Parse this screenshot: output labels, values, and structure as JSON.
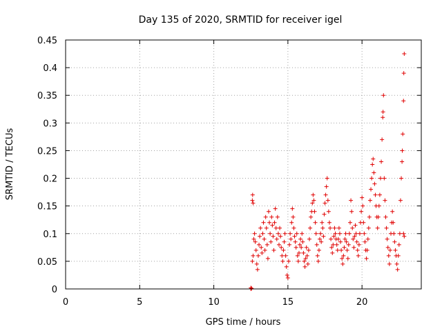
{
  "colors": {
    "marker": "#e00000",
    "grid": "#a0a0a0",
    "axis": "#000000",
    "background": "#ffffff"
  },
  "chart_data": {
    "type": "scatter",
    "marker": "plus",
    "title": "Day 135 of 2020, SRMTID for receiver igel",
    "xlabel": "GPS time / hours",
    "ylabel": "SRMTID / TECUs",
    "xlim": [
      0,
      24
    ],
    "ylim": [
      0,
      0.45
    ],
    "xticks": [
      0,
      5,
      10,
      15,
      20
    ],
    "xtick_labels": [
      "0",
      "5",
      "10",
      "15",
      "20"
    ],
    "yticks": [
      0,
      0.05,
      0.1,
      0.15,
      0.2,
      0.25,
      0.3,
      0.35,
      0.4,
      0.45
    ],
    "ytick_labels": [
      "0",
      "0.05",
      "0.1",
      "0.15",
      "0.2",
      "0.25",
      "0.3",
      "0.35",
      "0.4",
      "0.45"
    ],
    "grid": true,
    "series": [
      {
        "name": "SRMTID",
        "points": [
          [
            12.5,
            0.0
          ],
          [
            12.5,
            0.002
          ],
          [
            12.55,
            0.001
          ],
          [
            12.6,
            0.16
          ],
          [
            12.62,
            0.17
          ],
          [
            12.65,
            0.155
          ],
          [
            12.6,
            0.05
          ],
          [
            12.65,
            0.06
          ],
          [
            12.7,
            0.09
          ],
          [
            12.75,
            0.1
          ],
          [
            12.8,
            0.085
          ],
          [
            12.85,
            0.07
          ],
          [
            12.9,
            0.045
          ],
          [
            12.95,
            0.035
          ],
          [
            13.0,
            0.06
          ],
          [
            13.05,
            0.08
          ],
          [
            13.1,
            0.095
          ],
          [
            13.15,
            0.11
          ],
          [
            13.2,
            0.075
          ],
          [
            13.25,
            0.065
          ],
          [
            13.3,
            0.1
          ],
          [
            13.35,
            0.12
          ],
          [
            13.4,
            0.09
          ],
          [
            13.45,
            0.07
          ],
          [
            13.5,
            0.13
          ],
          [
            13.55,
            0.11
          ],
          [
            13.6,
            0.08
          ],
          [
            13.65,
            0.055
          ],
          [
            13.7,
            0.14
          ],
          [
            13.75,
            0.12
          ],
          [
            13.8,
            0.1
          ],
          [
            13.85,
            0.085
          ],
          [
            13.9,
            0.13
          ],
          [
            13.95,
            0.115
          ],
          [
            14.0,
            0.095
          ],
          [
            14.05,
            0.07
          ],
          [
            14.1,
            0.12
          ],
          [
            14.15,
            0.145
          ],
          [
            14.2,
            0.11
          ],
          [
            14.25,
            0.09
          ],
          [
            14.3,
            0.13
          ],
          [
            14.35,
            0.1
          ],
          [
            14.4,
            0.08
          ],
          [
            14.45,
            0.11
          ],
          [
            14.5,
            0.095
          ],
          [
            14.55,
            0.075
          ],
          [
            14.6,
            0.06
          ],
          [
            14.65,
            0.05
          ],
          [
            14.7,
            0.07
          ],
          [
            14.75,
            0.085
          ],
          [
            14.8,
            0.1
          ],
          [
            14.85,
            0.06
          ],
          [
            14.9,
            0.04
          ],
          [
            14.95,
            0.025
          ],
          [
            15.0,
            0.02
          ],
          [
            15.05,
            0.05
          ],
          [
            15.1,
            0.08
          ],
          [
            15.15,
            0.1
          ],
          [
            15.2,
            0.09
          ],
          [
            15.25,
            0.12
          ],
          [
            15.3,
            0.145
          ],
          [
            15.35,
            0.13
          ],
          [
            15.4,
            0.11
          ],
          [
            15.45,
            0.095
          ],
          [
            15.5,
            0.085
          ],
          [
            15.55,
            0.075
          ],
          [
            15.6,
            0.1
          ],
          [
            15.65,
            0.06
          ],
          [
            15.7,
            0.05
          ],
          [
            15.75,
            0.065
          ],
          [
            15.8,
            0.08
          ],
          [
            15.85,
            0.09
          ],
          [
            15.9,
            0.075
          ],
          [
            15.95,
            0.1
          ],
          [
            16.0,
            0.085
          ],
          [
            16.05,
            0.065
          ],
          [
            16.1,
            0.05
          ],
          [
            16.15,
            0.04
          ],
          [
            16.2,
            0.055
          ],
          [
            16.25,
            0.075
          ],
          [
            16.3,
            0.06
          ],
          [
            16.35,
            0.045
          ],
          [
            16.4,
            0.07
          ],
          [
            16.45,
            0.09
          ],
          [
            16.5,
            0.11
          ],
          [
            16.55,
            0.13
          ],
          [
            16.6,
            0.14
          ],
          [
            16.65,
            0.155
          ],
          [
            16.7,
            0.17
          ],
          [
            16.75,
            0.16
          ],
          [
            16.8,
            0.14
          ],
          [
            16.85,
            0.12
          ],
          [
            16.9,
            0.1
          ],
          [
            16.95,
            0.08
          ],
          [
            17.0,
            0.06
          ],
          [
            17.05,
            0.05
          ],
          [
            17.1,
            0.07
          ],
          [
            17.15,
            0.09
          ],
          [
            17.2,
            0.1
          ],
          [
            17.25,
            0.085
          ],
          [
            17.3,
            0.12
          ],
          [
            17.35,
            0.11
          ],
          [
            17.4,
            0.095
          ],
          [
            17.45,
            0.135
          ],
          [
            17.5,
            0.155
          ],
          [
            17.55,
            0.17
          ],
          [
            17.6,
            0.185
          ],
          [
            17.65,
            0.2
          ],
          [
            17.7,
            0.16
          ],
          [
            17.75,
            0.14
          ],
          [
            17.8,
            0.12
          ],
          [
            17.85,
            0.11
          ],
          [
            17.9,
            0.09
          ],
          [
            17.95,
            0.075
          ],
          [
            18.0,
            0.065
          ],
          [
            18.05,
            0.08
          ],
          [
            18.1,
            0.095
          ],
          [
            18.15,
            0.11
          ],
          [
            18.2,
            0.1
          ],
          [
            18.25,
            0.09
          ],
          [
            18.3,
            0.08
          ],
          [
            18.35,
            0.07
          ],
          [
            18.4,
            0.09
          ],
          [
            18.45,
            0.11
          ],
          [
            18.5,
            0.1
          ],
          [
            18.55,
            0.085
          ],
          [
            18.6,
            0.07
          ],
          [
            18.65,
            0.055
          ],
          [
            18.7,
            0.045
          ],
          [
            18.75,
            0.06
          ],
          [
            18.8,
            0.075
          ],
          [
            18.85,
            0.09
          ],
          [
            18.9,
            0.1
          ],
          [
            18.95,
            0.085
          ],
          [
            19.0,
            0.07
          ],
          [
            19.05,
            0.055
          ],
          [
            19.1,
            0.08
          ],
          [
            19.15,
            0.1
          ],
          [
            19.2,
            0.12
          ],
          [
            19.25,
            0.16
          ],
          [
            19.3,
            0.14
          ],
          [
            19.35,
            0.11
          ],
          [
            19.4,
            0.09
          ],
          [
            19.45,
            0.075
          ],
          [
            19.5,
            0.095
          ],
          [
            19.55,
            0.115
          ],
          [
            19.6,
            0.1
          ],
          [
            19.65,
            0.085
          ],
          [
            19.7,
            0.07
          ],
          [
            19.75,
            0.06
          ],
          [
            19.8,
            0.08
          ],
          [
            19.85,
            0.1
          ],
          [
            19.9,
            0.12
          ],
          [
            19.95,
            0.14
          ],
          [
            20.0,
            0.165
          ],
          [
            20.05,
            0.15
          ],
          [
            20.1,
            0.12
          ],
          [
            20.15,
            0.1
          ],
          [
            20.2,
            0.085
          ],
          [
            20.25,
            0.07
          ],
          [
            20.3,
            0.055
          ],
          [
            20.35,
            0.07
          ],
          [
            20.4,
            0.09
          ],
          [
            20.45,
            0.11
          ],
          [
            20.5,
            0.13
          ],
          [
            20.55,
            0.16
          ],
          [
            20.6,
            0.18
          ],
          [
            20.65,
            0.2
          ],
          [
            20.7,
            0.225
          ],
          [
            20.75,
            0.235
          ],
          [
            20.8,
            0.21
          ],
          [
            20.85,
            0.19
          ],
          [
            20.9,
            0.17
          ],
          [
            20.95,
            0.15
          ],
          [
            21.0,
            0.13
          ],
          [
            21.05,
            0.11
          ],
          [
            21.1,
            0.13
          ],
          [
            21.15,
            0.15
          ],
          [
            21.2,
            0.17
          ],
          [
            21.25,
            0.2
          ],
          [
            21.3,
            0.23
          ],
          [
            21.35,
            0.27
          ],
          [
            21.4,
            0.31
          ],
          [
            21.42,
            0.32
          ],
          [
            21.45,
            0.35
          ],
          [
            21.5,
            0.2
          ],
          [
            21.55,
            0.16
          ],
          [
            21.6,
            0.13
          ],
          [
            21.65,
            0.11
          ],
          [
            21.7,
            0.09
          ],
          [
            21.75,
            0.075
          ],
          [
            21.8,
            0.06
          ],
          [
            21.85,
            0.045
          ],
          [
            21.9,
            0.07
          ],
          [
            21.95,
            0.1
          ],
          [
            22.0,
            0.12
          ],
          [
            22.05,
            0.14
          ],
          [
            22.1,
            0.12
          ],
          [
            22.15,
            0.1
          ],
          [
            22.2,
            0.085
          ],
          [
            22.25,
            0.07
          ],
          [
            22.3,
            0.06
          ],
          [
            22.35,
            0.045
          ],
          [
            22.4,
            0.035
          ],
          [
            22.45,
            0.06
          ],
          [
            22.5,
            0.08
          ],
          [
            22.55,
            0.1
          ],
          [
            22.6,
            0.16
          ],
          [
            22.65,
            0.2
          ],
          [
            22.7,
            0.23
          ],
          [
            22.72,
            0.25
          ],
          [
            22.75,
            0.28
          ],
          [
            22.8,
            0.34
          ],
          [
            22.82,
            0.39
          ],
          [
            22.85,
            0.425
          ],
          [
            22.8,
            0.1
          ],
          [
            22.85,
            0.095
          ]
        ]
      }
    ]
  }
}
